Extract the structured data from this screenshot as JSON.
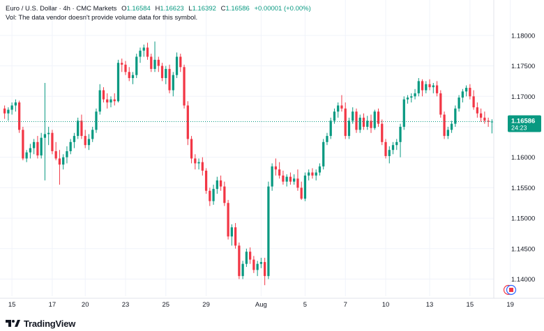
{
  "legend": {
    "symbol": "Euro / U.S. Dollar · 4h · CMC Markets",
    "open_label": "O",
    "open": "1.16584",
    "high_label": "H",
    "high": "1.16623",
    "low_label": "L",
    "low": "1.16392",
    "close_label": "C",
    "close": "1.16586",
    "change": "+0.00001 (+0.00%)",
    "vol_note": "Vol: The data vendor doesn't provide volume data for this symbol."
  },
  "price_label": {
    "price": "1.16586",
    "countdown": "24:23"
  },
  "logo": {
    "text": "TradingView"
  },
  "colors": {
    "up": "#089981",
    "down": "#f23645",
    "grid": "#f0f3fa",
    "axis_text": "#131722",
    "last_line": "#089981"
  },
  "chart_data": {
    "type": "candlestick",
    "ylim": [
      1.1372,
      1.1849
    ],
    "y_ticks": [
      "1.18000",
      "1.17500",
      "1.17000",
      "1.16500",
      "1.16000",
      "1.15500",
      "1.15000",
      "1.14500",
      "1.14000"
    ],
    "x_ticks": [
      {
        "label": "15",
        "index": 2
      },
      {
        "label": "17",
        "index": 13
      },
      {
        "label": "20",
        "index": 22
      },
      {
        "label": "23",
        "index": 33
      },
      {
        "label": "25",
        "index": 44
      },
      {
        "label": "29",
        "index": 55
      },
      {
        "label": "Aug",
        "index": 70
      },
      {
        "label": "5",
        "index": 82
      },
      {
        "label": "7",
        "index": 93
      },
      {
        "label": "10",
        "index": 104
      },
      {
        "label": "13",
        "index": 116
      },
      {
        "label": "15",
        "index": 127
      },
      {
        "label": "19",
        "index": 138
      }
    ],
    "last_price": 1.16586,
    "candles": [
      [
        1.168,
        1.1685,
        1.1663,
        1.1672
      ],
      [
        1.1672,
        1.1682,
        1.166,
        1.1678
      ],
      [
        1.1678,
        1.169,
        1.167,
        1.1685
      ],
      [
        1.1685,
        1.1695,
        1.1675,
        1.169
      ],
      [
        1.169,
        1.1693,
        1.164,
        1.1645
      ],
      [
        1.1645,
        1.165,
        1.1595,
        1.1598
      ],
      [
        1.1598,
        1.1612,
        1.1592,
        1.1608
      ],
      [
        1.1608,
        1.1622,
        1.1598,
        1.1615
      ],
      [
        1.1615,
        1.163,
        1.1605,
        1.1625
      ],
      [
        1.1625,
        1.1635,
        1.1598,
        1.1603
      ],
      [
        1.1603,
        1.164,
        1.1598,
        1.1632
      ],
      [
        1.1632,
        1.1722,
        1.1562,
        1.1638
      ],
      [
        1.1638,
        1.165,
        1.162,
        1.164
      ],
      [
        1.164,
        1.1645,
        1.1605,
        1.161
      ],
      [
        1.161,
        1.1625,
        1.1595,
        1.1598
      ],
      [
        1.1598,
        1.1612,
        1.1555,
        1.1588
      ],
      [
        1.1588,
        1.1605,
        1.158,
        1.16
      ],
      [
        1.16,
        1.1618,
        1.159,
        1.161
      ],
      [
        1.161,
        1.163,
        1.1605,
        1.1625
      ],
      [
        1.1625,
        1.164,
        1.1615,
        1.1635
      ],
      [
        1.1635,
        1.1665,
        1.163,
        1.166
      ],
      [
        1.166,
        1.167,
        1.163,
        1.1635
      ],
      [
        1.1635,
        1.1645,
        1.1615,
        1.162
      ],
      [
        1.162,
        1.1638,
        1.1612,
        1.163
      ],
      [
        1.163,
        1.165,
        1.1625,
        1.1645
      ],
      [
        1.1645,
        1.168,
        1.164,
        1.1675
      ],
      [
        1.1675,
        1.172,
        1.167,
        1.171
      ],
      [
        1.171,
        1.1715,
        1.169,
        1.1695
      ],
      [
        1.1695,
        1.1705,
        1.168,
        1.169
      ],
      [
        1.169,
        1.17,
        1.1682,
        1.1695
      ],
      [
        1.1695,
        1.1705,
        1.1685,
        1.1692
      ],
      [
        1.1692,
        1.176,
        1.169,
        1.1755
      ],
      [
        1.1755,
        1.1762,
        1.174,
        1.1752
      ],
      [
        1.1752,
        1.1758,
        1.1735,
        1.174
      ],
      [
        1.174,
        1.1748,
        1.1725,
        1.173
      ],
      [
        1.173,
        1.174,
        1.172,
        1.1735
      ],
      [
        1.1735,
        1.177,
        1.173,
        1.1765
      ],
      [
        1.1765,
        1.178,
        1.1755,
        1.1775
      ],
      [
        1.1775,
        1.1785,
        1.1765,
        1.178
      ],
      [
        1.178,
        1.1788,
        1.176,
        1.1765
      ],
      [
        1.1765,
        1.177,
        1.174,
        1.1745
      ],
      [
        1.1745,
        1.179,
        1.174,
        1.176
      ],
      [
        1.176,
        1.1765,
        1.174,
        1.175
      ],
      [
        1.175,
        1.1755,
        1.1725,
        1.173
      ],
      [
        1.173,
        1.175,
        1.172,
        1.1745
      ],
      [
        1.1745,
        1.1752,
        1.1705,
        1.171
      ],
      [
        1.171,
        1.174,
        1.17,
        1.1735
      ],
      [
        1.1735,
        1.1772,
        1.173,
        1.1765
      ],
      [
        1.1765,
        1.177,
        1.174,
        1.1748
      ],
      [
        1.1748,
        1.1752,
        1.168,
        1.1685
      ],
      [
        1.1685,
        1.1692,
        1.162,
        1.163
      ],
      [
        1.163,
        1.1635,
        1.159,
        1.1598
      ],
      [
        1.1598,
        1.1605,
        1.158,
        1.159
      ],
      [
        1.159,
        1.1598,
        1.158,
        1.1592
      ],
      [
        1.1592,
        1.16,
        1.157,
        1.1578
      ],
      [
        1.1578,
        1.1582,
        1.154,
        1.1545
      ],
      [
        1.1545,
        1.155,
        1.152,
        1.1528
      ],
      [
        1.1528,
        1.1555,
        1.1522,
        1.1548
      ],
      [
        1.1548,
        1.1568,
        1.154,
        1.1562
      ],
      [
        1.1562,
        1.157,
        1.1545,
        1.1552
      ],
      [
        1.1552,
        1.156,
        1.152,
        1.1525
      ],
      [
        1.1525,
        1.153,
        1.1465,
        1.147
      ],
      [
        1.147,
        1.149,
        1.1455,
        1.1485
      ],
      [
        1.1485,
        1.1492,
        1.145,
        1.1455
      ],
      [
        1.1455,
        1.146,
        1.14,
        1.1405
      ],
      [
        1.1405,
        1.143,
        1.14,
        1.1425
      ],
      [
        1.1425,
        1.145,
        1.142,
        1.1445
      ],
      [
        1.1445,
        1.1452,
        1.1425,
        1.1432
      ],
      [
        1.1432,
        1.1438,
        1.141,
        1.1415
      ],
      [
        1.1415,
        1.143,
        1.1405,
        1.1425
      ],
      [
        1.1425,
        1.1435,
        1.1418,
        1.1428
      ],
      [
        1.1428,
        1.1435,
        1.139,
        1.1405
      ],
      [
        1.1405,
        1.156,
        1.14,
        1.1552
      ],
      [
        1.1552,
        1.159,
        1.1545,
        1.1585
      ],
      [
        1.1585,
        1.1598,
        1.157,
        1.158
      ],
      [
        1.158,
        1.1592,
        1.1565,
        1.157
      ],
      [
        1.157,
        1.1578,
        1.1555,
        1.156
      ],
      [
        1.156,
        1.1572,
        1.1552,
        1.1568
      ],
      [
        1.1568,
        1.1575,
        1.1555,
        1.156
      ],
      [
        1.156,
        1.1572,
        1.1555,
        1.1565
      ],
      [
        1.1565,
        1.158,
        1.1545,
        1.155
      ],
      [
        1.155,
        1.156,
        1.153,
        1.1532
      ],
      [
        1.1532,
        1.1575,
        1.1528,
        1.157
      ],
      [
        1.157,
        1.158,
        1.1562,
        1.1575
      ],
      [
        1.1575,
        1.1582,
        1.1565,
        1.157
      ],
      [
        1.157,
        1.158,
        1.1562,
        1.1575
      ],
      [
        1.1575,
        1.159,
        1.157,
        1.1585
      ],
      [
        1.1585,
        1.163,
        1.158,
        1.1625
      ],
      [
        1.1625,
        1.164,
        1.162,
        1.1635
      ],
      [
        1.1635,
        1.1665,
        1.163,
        1.166
      ],
      [
        1.166,
        1.168,
        1.1655,
        1.1675
      ],
      [
        1.1675,
        1.169,
        1.1665,
        1.1685
      ],
      [
        1.1685,
        1.1702,
        1.1675,
        1.168
      ],
      [
        1.168,
        1.169,
        1.163,
        1.1635
      ],
      [
        1.1635,
        1.1665,
        1.163,
        1.166
      ],
      [
        1.166,
        1.1682,
        1.1655,
        1.1675
      ],
      [
        1.1675,
        1.168,
        1.164,
        1.1645
      ],
      [
        1.1645,
        1.167,
        1.164,
        1.1665
      ],
      [
        1.1665,
        1.1672,
        1.1645,
        1.165
      ],
      [
        1.165,
        1.1668,
        1.1645,
        1.166
      ],
      [
        1.166,
        1.167,
        1.164,
        1.1648
      ],
      [
        1.1648,
        1.1678,
        1.1645,
        1.1675
      ],
      [
        1.1675,
        1.168,
        1.165,
        1.1655
      ],
      [
        1.1655,
        1.1662,
        1.162,
        1.1625
      ],
      [
        1.1625,
        1.163,
        1.1598,
        1.1602
      ],
      [
        1.1602,
        1.1618,
        1.159,
        1.1612
      ],
      [
        1.1612,
        1.1625,
        1.1605,
        1.162
      ],
      [
        1.162,
        1.163,
        1.1612,
        1.1625
      ],
      [
        1.1625,
        1.1655,
        1.16,
        1.165
      ],
      [
        1.165,
        1.17,
        1.1645,
        1.1695
      ],
      [
        1.1695,
        1.1702,
        1.1688,
        1.1698
      ],
      [
        1.1698,
        1.1705,
        1.169,
        1.17
      ],
      [
        1.17,
        1.1712,
        1.1695,
        1.1705
      ],
      [
        1.1705,
        1.173,
        1.17,
        1.1725
      ],
      [
        1.1725,
        1.1728,
        1.17,
        1.171
      ],
      [
        1.171,
        1.1725,
        1.1705,
        1.172
      ],
      [
        1.172,
        1.1728,
        1.171,
        1.1715
      ],
      [
        1.1715,
        1.1722,
        1.1705,
        1.1718
      ],
      [
        1.1718,
        1.1725,
        1.17,
        1.1705
      ],
      [
        1.1705,
        1.171,
        1.1665,
        1.167
      ],
      [
        1.167,
        1.1675,
        1.163,
        1.1635
      ],
      [
        1.1635,
        1.165,
        1.163,
        1.1645
      ],
      [
        1.1645,
        1.166,
        1.164,
        1.1655
      ],
      [
        1.1655,
        1.1685,
        1.165,
        1.168
      ],
      [
        1.168,
        1.1702,
        1.1675,
        1.1698
      ],
      [
        1.1698,
        1.1712,
        1.169,
        1.1708
      ],
      [
        1.1708,
        1.1718,
        1.17,
        1.1714
      ],
      [
        1.1714,
        1.172,
        1.1695,
        1.17
      ],
      [
        1.17,
        1.171,
        1.1678,
        1.1682
      ],
      [
        1.1682,
        1.169,
        1.1665,
        1.1672
      ],
      [
        1.1672,
        1.168,
        1.1658,
        1.1665
      ],
      [
        1.1665,
        1.1675,
        1.1655,
        1.166
      ],
      [
        1.166,
        1.1665,
        1.165,
        1.16584
      ],
      [
        1.16584,
        1.16623,
        1.16392,
        1.16586
      ]
    ]
  }
}
